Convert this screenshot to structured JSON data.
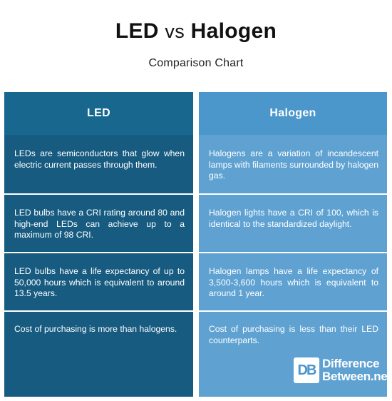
{
  "title": {
    "main": "LED",
    "vs": "vs",
    "second": "Halogen"
  },
  "subtitle": "Comparison Chart",
  "columns": {
    "left": {
      "header": "LED"
    },
    "right": {
      "header": "Halogen"
    }
  },
  "rows": [
    {
      "left": "LEDs are semiconductors that glow when electric current passes through them.",
      "right": "Halogens are a variation of incandescent lamps with filaments surrounded by halogen gas."
    },
    {
      "left": "LED bulbs have a CRI rating around 80 and high-end LEDs can achieve up to a maximum of 98 CRI.",
      "right": "Halogen lights have a CRI of 100, which is identical to the standardized daylight."
    },
    {
      "left": "LED bulbs have a life expectancy of up to 50,000 hours which is equivalent to around 13.5 years.",
      "right": "Halogen lamps have a life expectancy of 3,500-3,600 hours which is equivalent to around 1 year."
    },
    {
      "left": "Cost of purchasing is more than halogens.",
      "right": "Cost of purchasing is less than their LED counterparts."
    }
  ],
  "logo": {
    "mark": "DB",
    "line1": "Difference",
    "line2": "Between.net"
  },
  "colors": {
    "left_body": "#175b80",
    "left_header": "#17678f",
    "right_body": "#5fa2d2",
    "right_header": "#4b96cb"
  }
}
